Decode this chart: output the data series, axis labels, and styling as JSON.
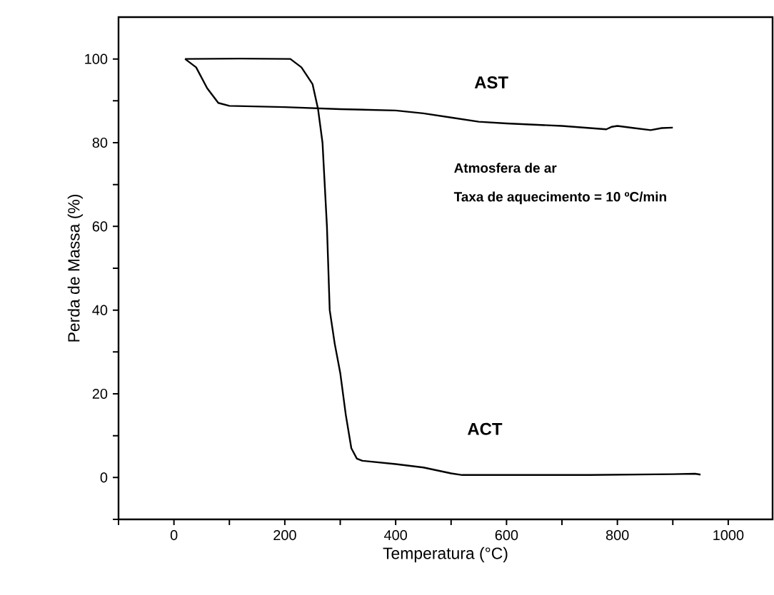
{
  "chart_data": {
    "type": "line",
    "xlabel": "Temperatura (°C)",
    "ylabel": "Perda de Massa (%)",
    "xlim": [
      -100,
      1080
    ],
    "ylim": [
      -10,
      110
    ],
    "xticks": [
      {
        "value": -100,
        "label": null
      },
      0,
      {
        "value": 100,
        "label": null
      },
      200,
      {
        "value": 300,
        "label": null
      },
      400,
      {
        "value": 500,
        "label": null
      },
      600,
      {
        "value": 700,
        "label": null
      },
      800,
      {
        "value": 900,
        "label": null
      },
      1000
    ],
    "yticks": [
      {
        "value": -10,
        "label": null
      },
      0,
      {
        "value": 10,
        "label": null
      },
      20,
      {
        "value": 30,
        "label": null
      },
      40,
      {
        "value": 50,
        "label": null
      },
      60,
      {
        "value": 70,
        "label": null
      },
      80,
      {
        "value": 90,
        "label": null
      },
      100
    ],
    "grid": false,
    "legend": false,
    "marker": "none",
    "line_style": "solid",
    "annotations": [
      "Atmosfera de ar",
      "Taxa de aquecimento = 10 ºC/min"
    ],
    "series": [
      {
        "name": "AST",
        "color": "#000000",
        "x": [
          20,
          40,
          60,
          80,
          100,
          200,
          300,
          400,
          450,
          500,
          550,
          600,
          700,
          780,
          790,
          800,
          830,
          860,
          880,
          900
        ],
        "values": [
          100,
          98,
          93,
          89.5,
          88.8,
          88.5,
          88,
          87.7,
          87,
          86,
          85,
          84.6,
          84,
          83.2,
          83.8,
          84,
          83.5,
          83,
          83.5,
          83.6
        ]
      },
      {
        "name": "ACT",
        "color": "#000000",
        "x": [
          20,
          120,
          210,
          230,
          250,
          260,
          268,
          276,
          281,
          290,
          300,
          310,
          320,
          330,
          340,
          400,
          450,
          500,
          520,
          750,
          900,
          940,
          950
        ],
        "values": [
          100,
          100.1,
          100,
          98,
          94,
          88,
          80,
          60,
          40,
          32,
          25,
          15,
          7,
          4.5,
          4,
          3.2,
          2.4,
          1,
          0.6,
          0.6,
          0.8,
          0.9,
          0.7
        ]
      }
    ]
  }
}
